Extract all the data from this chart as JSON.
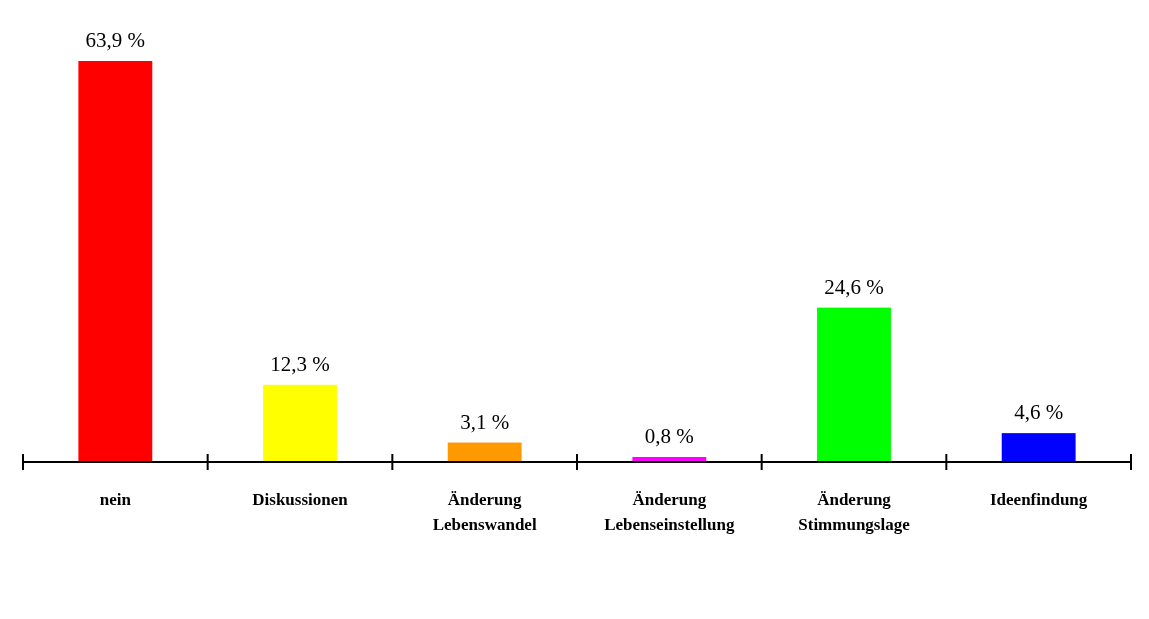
{
  "chart_data": {
    "type": "bar",
    "categories": [
      "nein",
      "Diskussionen",
      "Änderung Lebenswandel",
      "Änderung Lebenseinstellung",
      "Änderung Stimmungslage",
      "Ideenfindung"
    ],
    "values": [
      63.9,
      12.3,
      3.1,
      0.8,
      24.6,
      4.6
    ],
    "colors": [
      "#ff0000",
      "#ffff00",
      "#ff9900",
      "#ff00ff",
      "#00ff00",
      "#0000ff"
    ],
    "value_labels": [
      "63,9 %",
      "12,3 %",
      "3,1 %",
      "0,8 %",
      "24,6 %",
      "4,6 %"
    ]
  }
}
